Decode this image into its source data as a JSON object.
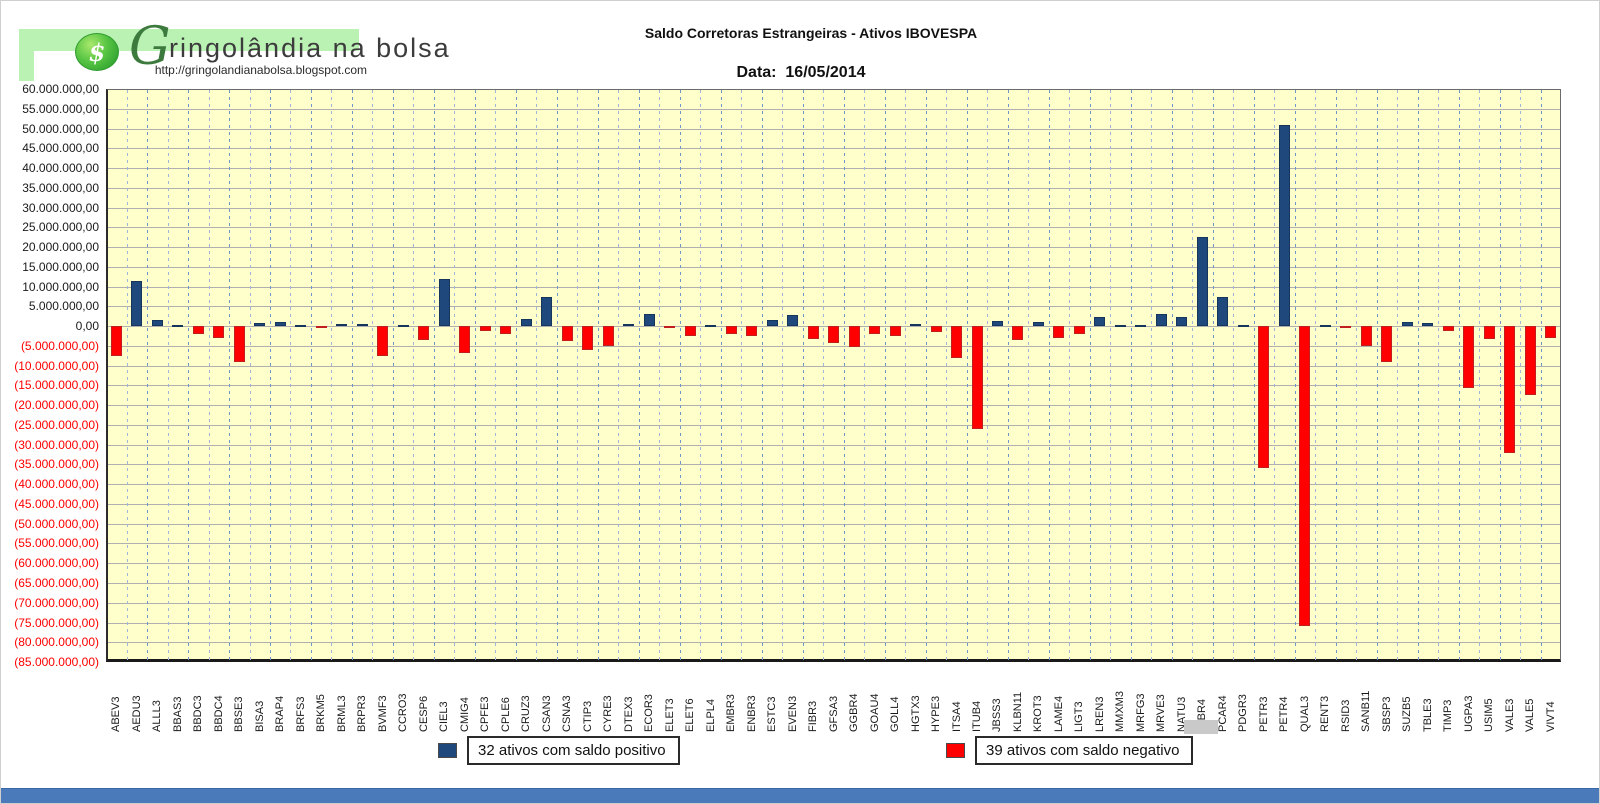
{
  "logo": {
    "initial": "G",
    "brand_rest": "ringolândia na bolsa",
    "url": "http://gringolandianabolsa.blogspot.com",
    "icon_glyph": "$"
  },
  "header": {
    "title": "Saldo Corretoras Estrangeiras - Ativos IBOVESPA",
    "date_label": "Data:",
    "date_value": "16/05/2014"
  },
  "chart_data": {
    "type": "bar",
    "title": "Saldo Corretoras Estrangeiras - Ativos IBOVESPA",
    "date": "16/05/2014",
    "ylim": [
      -85000000,
      60000000
    ],
    "y_step": 5000000,
    "y_format": "pt-BR: thousands with dots, ',00' decimals; negatives shown in red within parentheses",
    "grid": {
      "horizontal": "solid gray every 5.000.000",
      "vertical": "dashed blue between every category"
    },
    "plot_bg": "#FFFFCC",
    "positive_color": "#1F497D",
    "negative_color": "#FE0000",
    "legend_position": "bottom",
    "legend": [
      {
        "label": "32 ativos com saldo positivo",
        "color": "#1F497D"
      },
      {
        "label": "39 ativos com saldo negativo",
        "color": "#FE0000"
      }
    ],
    "categories": [
      "ABEV3",
      "AEDU3",
      "ALLL3",
      "BBAS3",
      "BBDC3",
      "BBDC4",
      "BBSE3",
      "BISA3",
      "BRAP4",
      "BRFS3",
      "BRKM5",
      "BRML3",
      "BRPR3",
      "BVMF3",
      "CCRO3",
      "CESP6",
      "CIEL3",
      "CMIG4",
      "CPFE3",
      "CPLE6",
      "CRUZ3",
      "CSAN3",
      "CSNA3",
      "CTIP3",
      "CYRE3",
      "DTEX3",
      "ECOR3",
      "ELET3",
      "ELET6",
      "ELPL4",
      "EMBR3",
      "ENBR3",
      "ESTC3",
      "EVEN3",
      "FIBR3",
      "GFSA3",
      "GGBR4",
      "GOAU4",
      "GOLL4",
      "HGTX3",
      "HYPE3",
      "ITSA4",
      "ITUB4",
      "JBSS3",
      "KLBN11",
      "KROT3",
      "LAME4",
      "LIGT3",
      "LREN3",
      "MMXM3",
      "MRFG3",
      "MRVE3",
      "NATU3",
      "OIBR4",
      "PCAR4",
      "PDGR3",
      "PETR3",
      "PETR4",
      "QUAL3",
      "RENT3",
      "RSID3",
      "SANB11",
      "SBSP3",
      "SUZB5",
      "TBLE3",
      "TIMP3",
      "UGPA3",
      "USIM5",
      "VALE3",
      "VALE5",
      "VIVT4"
    ],
    "values": [
      -7500000,
      11500000,
      1500000,
      300000,
      -2000000,
      -3000000,
      -9000000,
      800000,
      1000000,
      400000,
      -300000,
      500000,
      500000,
      -7500000,
      400000,
      -3500000,
      12000000,
      -6700000,
      -1300000,
      -2000000,
      1800000,
      7300000,
      -3700000,
      -6000000,
      -5000000,
      500000,
      3000000,
      -500000,
      -2500000,
      400000,
      -2000000,
      -2500000,
      1500000,
      2800000,
      -3200000,
      -4400000,
      -5400000,
      -2000000,
      -2500000,
      500000,
      -1500000,
      -8000000,
      -26000000,
      1200000,
      -3600000,
      1000000,
      -3000000,
      -2000000,
      2200000,
      200000,
      300000,
      3000000,
      2300000,
      22500000,
      7300000,
      200000,
      -36000000,
      51000000,
      -76000000,
      300000,
      -200000,
      -5000000,
      -9200000,
      1000000,
      900000,
      -1200000,
      -15800000,
      -3400000,
      -32000000,
      -17500000,
      -3000000
    ]
  }
}
